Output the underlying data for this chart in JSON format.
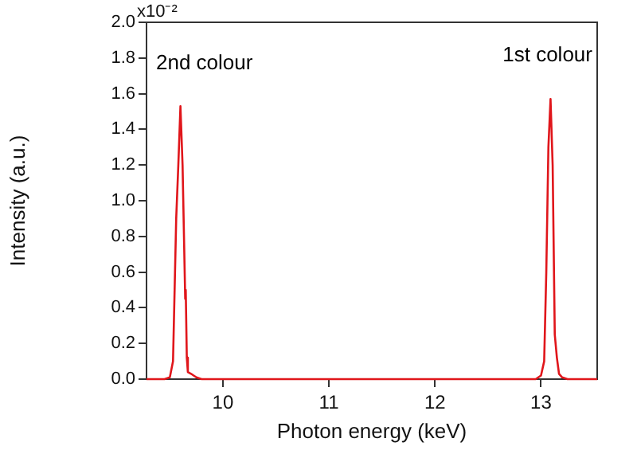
{
  "chart_data": {
    "type": "line",
    "xlabel": "Photon energy (keV)",
    "ylabel": "Intensity (a.u.)",
    "series": [
      {
        "color": "#e0161b",
        "x": [
          9.28,
          9.45,
          9.5,
          9.53,
          9.56,
          9.58,
          9.6,
          9.62,
          9.64,
          9.645,
          9.65,
          9.66,
          9.67,
          9.7,
          9.75,
          9.8,
          10.0,
          11.0,
          12.0,
          12.95,
          13.0,
          13.03,
          13.05,
          13.07,
          13.09,
          13.11,
          13.13,
          13.15,
          13.17,
          13.2,
          13.25,
          13.53
        ],
        "values": [
          0.0,
          0.0,
          0.01,
          0.1,
          0.9,
          1.2,
          1.53,
          1.2,
          0.6,
          0.45,
          0.5,
          0.12,
          0.04,
          0.03,
          0.01,
          0.0,
          0.0,
          0.0,
          0.0,
          0.0,
          0.02,
          0.1,
          0.6,
          1.3,
          1.57,
          1.2,
          0.25,
          0.12,
          0.03,
          0.01,
          0.0,
          0.0
        ]
      }
    ],
    "xlim": [
      9.28,
      13.53
    ],
    "xticks": [
      10,
      11,
      12,
      13
    ],
    "ylim": [
      0,
      2.0
    ],
    "yticks": [
      {
        "value": 0,
        "label": "0.0"
      },
      0.2,
      0.4,
      0.6,
      0.8,
      {
        "value": 1,
        "label": "1.0"
      },
      1.2,
      1.4,
      1.6,
      1.8,
      {
        "value": 2,
        "label": "2.0"
      }
    ],
    "annotations": [
      "x10⁻²",
      "2nd colour",
      "1st colour"
    ],
    "grid": false,
    "legend": false,
    "marker": "none",
    "line_style": "solid"
  }
}
